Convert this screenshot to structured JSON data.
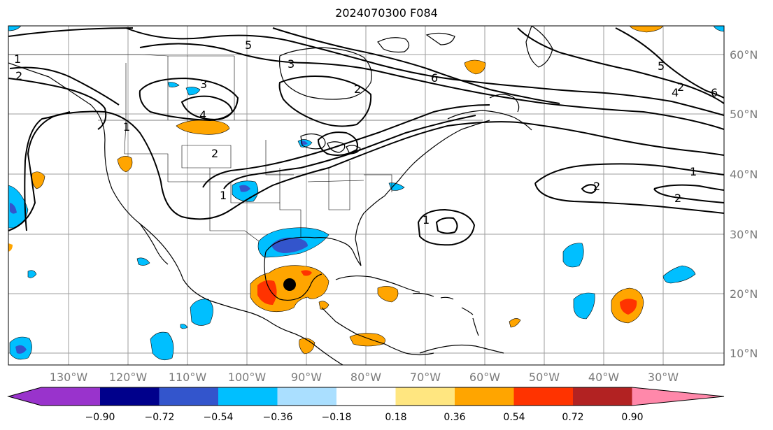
{
  "title": "2024070300 F084",
  "lon_ticks": [
    "130°W",
    "120°W",
    "110°W",
    "100°W",
    "90°W",
    "80°W",
    "70°W",
    "60°W",
    "50°W",
    "40°W",
    "30°W"
  ],
  "lat_ticks": [
    "60°N",
    "50°N",
    "40°N",
    "30°N",
    "20°N",
    "10°N"
  ],
  "colorbar": {
    "colors": [
      "#9933cc",
      "#00008b",
      "#3355cc",
      "#00bfff",
      "#aadfff",
      "#ffffff",
      "#ffe680",
      "#ffa500",
      "#ff3300",
      "#b22222",
      "#ff88aa"
    ],
    "ticks": [
      "−0.90",
      "−0.72",
      "−0.54",
      "−0.36",
      "−0.18",
      "0.18",
      "0.36",
      "0.54",
      "0.72",
      "0.90"
    ]
  },
  "contour_labels": [
    "5",
    "3",
    "6",
    "2",
    "3",
    "4",
    "2",
    "1",
    "2",
    "1",
    "2",
    "1",
    "2",
    "5",
    "4",
    "6",
    "1",
    "2",
    "1"
  ],
  "storm_marker": "black-dot"
}
